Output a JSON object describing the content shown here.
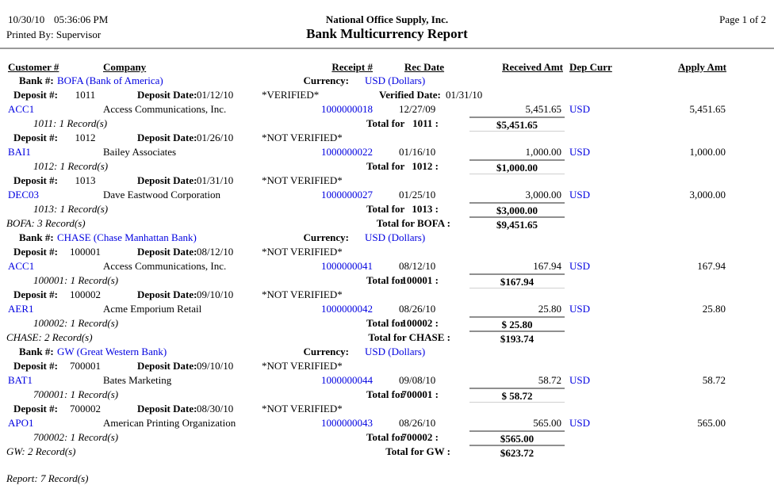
{
  "header": {
    "date": "10/30/10",
    "time": "05:36:06 PM",
    "printed_by": "Printed By: Supervisor",
    "company": "National Office Supply, Inc.",
    "title": "Bank Multicurrency Report",
    "page": "Page 1 of 2"
  },
  "columns": {
    "customer": "Customer #",
    "company": "Company",
    "receipt": "Receipt #",
    "rec_date": "Rec Date",
    "received": "Received Amt",
    "dep_curr": "Dep Curr",
    "apply": "Apply Amt"
  },
  "labels": {
    "bank_no": "Bank #:",
    "currency": "Currency:",
    "deposit_no": "Deposit #:",
    "deposit_date": "Deposit Date:",
    "verified_date": "Verified Date:",
    "total_for": "Total for"
  },
  "colors": {
    "link": "#0000e0",
    "rule_dark": "#8f8f8f",
    "rule_light": "#d0d0d0",
    "header_rule": "#9a9a9a"
  },
  "banks": [
    {
      "bank_label": "BOFA (Bank of America)",
      "currency_label": "USD (Dollars)",
      "record_count": "BOFA: 3 Record(s)",
      "total_label": "Total for BOFA :",
      "total": "$9,451.65",
      "deposits": [
        {
          "number": "1011",
          "date": "01/12/10",
          "status": "*VERIFIED*",
          "verified_date": "01/31/10",
          "record_count": "1011: 1 Record(s)",
          "total_number": "1011 :",
          "total": "$5,451.65",
          "records": [
            {
              "customer": "ACC1",
              "company": "Access Communications, Inc.",
              "receipt": "1000000018",
              "rec_date": "12/27/09",
              "received": "5,451.65",
              "curr": "USD",
              "apply": "5,451.65"
            }
          ]
        },
        {
          "number": "1012",
          "date": "01/26/10",
          "status": "*NOT VERIFIED*",
          "record_count": "1012: 1 Record(s)",
          "total_number": "1012 :",
          "total": "$1,000.00",
          "records": [
            {
              "customer": "BAI1",
              "company": "Bailey Associates",
              "receipt": "1000000022",
              "rec_date": "01/16/10",
              "received": "1,000.00",
              "curr": "USD",
              "apply": "1,000.00"
            }
          ]
        },
        {
          "number": "1013",
          "date": "01/31/10",
          "status": "*NOT VERIFIED*",
          "record_count": "1013: 1 Record(s)",
          "total_number": "1013 :",
          "total": "$3,000.00",
          "records": [
            {
              "customer": "DEC03",
              "company": "Dave Eastwood Corporation",
              "receipt": "1000000027",
              "rec_date": "01/25/10",
              "received": "3,000.00",
              "curr": "USD",
              "apply": "3,000.00"
            }
          ]
        }
      ]
    },
    {
      "bank_label": "CHASE (Chase Manhattan Bank)",
      "currency_label": "USD (Dollars)",
      "record_count": "CHASE: 2 Record(s)",
      "total_label": "Total for CHASE :",
      "total": "$193.74",
      "deposits": [
        {
          "number": "100001",
          "date": "08/12/10",
          "status": "*NOT VERIFIED*",
          "record_count": "100001: 1 Record(s)",
          "total_number": "100001 :",
          "total": "$167.94",
          "records": [
            {
              "customer": "ACC1",
              "company": "Access Communications, Inc.",
              "receipt": "1000000041",
              "rec_date": "08/12/10",
              "received": "167.94",
              "curr": "USD",
              "apply": "167.94"
            }
          ]
        },
        {
          "number": "100002",
          "date": "09/10/10",
          "status": "*NOT VERIFIED*",
          "record_count": "100002: 1 Record(s)",
          "total_number": "100002 :",
          "total": "$ 25.80",
          "records": [
            {
              "customer": "AER1",
              "company": "Acme Emporium Retail",
              "receipt": "1000000042",
              "rec_date": "08/26/10",
              "received": "25.80",
              "curr": "USD",
              "apply": "25.80"
            }
          ]
        }
      ]
    },
    {
      "bank_label": "GW (Great Western Bank)",
      "currency_label": "USD (Dollars)",
      "record_count": "GW: 2 Record(s)",
      "total_label": "Total for GW :",
      "total": "$623.72",
      "deposits": [
        {
          "number": "700001",
          "date": "09/10/10",
          "status": "*NOT VERIFIED*",
          "record_count": "700001: 1 Record(s)",
          "total_number": "700001 :",
          "total": "$ 58.72",
          "records": [
            {
              "customer": "BAT1",
              "company": "Bates Marketing",
              "receipt": "1000000044",
              "rec_date": "09/08/10",
              "received": "58.72",
              "curr": "USD",
              "apply": "58.72"
            }
          ]
        },
        {
          "number": "700002",
          "date": "08/30/10",
          "status": "*NOT VERIFIED*",
          "record_count": "700002: 1 Record(s)",
          "total_number": "700002 :",
          "total": "$565.00",
          "records": [
            {
              "customer": "APO1",
              "company": "American Printing Organization",
              "receipt": "1000000043",
              "rec_date": "08/26/10",
              "received": "565.00",
              "curr": "USD",
              "apply": "565.00"
            }
          ]
        }
      ]
    }
  ],
  "report_count": "Report: 7 Record(s)"
}
